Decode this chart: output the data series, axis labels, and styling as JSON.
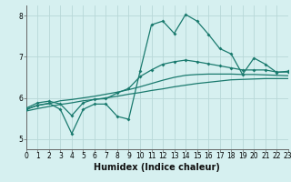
{
  "title": "",
  "xlabel": "Humidex (Indice chaleur)",
  "ylabel": "",
  "background_color": "#d6f0f0",
  "grid_color": "#b8d8d8",
  "line_color": "#1a7a6e",
  "x_values": [
    0,
    1,
    2,
    3,
    4,
    5,
    6,
    7,
    8,
    9,
    10,
    11,
    12,
    13,
    14,
    15,
    16,
    17,
    18,
    19,
    20,
    21,
    22,
    23
  ],
  "line_spiky": [
    5.72,
    5.82,
    5.87,
    5.72,
    5.13,
    5.72,
    5.85,
    5.85,
    5.55,
    5.48,
    6.65,
    7.78,
    7.87,
    7.57,
    8.03,
    7.87,
    7.55,
    7.2,
    7.07,
    6.57,
    6.97,
    6.82,
    6.62,
    6.65
  ],
  "line_upper": [
    5.75,
    5.88,
    5.92,
    5.85,
    5.57,
    5.88,
    5.97,
    5.98,
    6.12,
    6.23,
    6.52,
    6.68,
    6.82,
    6.88,
    6.92,
    6.88,
    6.83,
    6.78,
    6.73,
    6.68,
    6.68,
    6.68,
    6.63,
    6.63
  ],
  "line_mid": [
    5.72,
    5.82,
    5.86,
    5.93,
    5.96,
    6.0,
    6.04,
    6.09,
    6.14,
    6.2,
    6.27,
    6.35,
    6.43,
    6.5,
    6.55,
    6.57,
    6.58,
    6.58,
    6.58,
    6.57,
    6.57,
    6.56,
    6.55,
    6.54
  ],
  "line_lower": [
    5.68,
    5.74,
    5.79,
    5.84,
    5.88,
    5.93,
    5.96,
    6.0,
    6.04,
    6.09,
    6.13,
    6.18,
    6.22,
    6.27,
    6.31,
    6.35,
    6.38,
    6.41,
    6.44,
    6.45,
    6.46,
    6.47,
    6.47,
    6.47
  ],
  "spiky_marker_indices": [
    0,
    1,
    2,
    3,
    4,
    5,
    6,
    7,
    8,
    9,
    10,
    11,
    12,
    13,
    14,
    15,
    16,
    17,
    18,
    19,
    20,
    21,
    22,
    23
  ],
  "upper_marker_indices": [
    0,
    1,
    2,
    3,
    4,
    5,
    6,
    7,
    8,
    9,
    10,
    11,
    12,
    13,
    14,
    15,
    16,
    17,
    18,
    19,
    20,
    21,
    22,
    23
  ],
  "xlim": [
    0,
    23
  ],
  "ylim": [
    4.75,
    8.25
  ],
  "yticks": [
    5,
    6,
    7,
    8
  ],
  "xticks": [
    0,
    1,
    2,
    3,
    4,
    5,
    6,
    7,
    8,
    9,
    10,
    11,
    12,
    13,
    14,
    15,
    16,
    17,
    18,
    19,
    20,
    21,
    22,
    23
  ]
}
